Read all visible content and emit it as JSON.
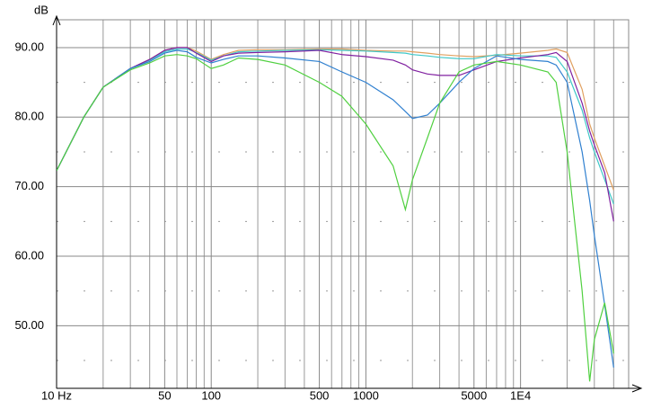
{
  "chart_data": {
    "type": "line",
    "ylabel": "dB",
    "xscale": "log",
    "x": [
      10,
      15,
      20,
      30,
      40,
      50,
      60,
      70,
      80,
      100,
      120,
      150,
      200,
      300,
      500,
      700,
      1000,
      1500,
      1800,
      2000,
      2500,
      3000,
      4000,
      5000,
      7000,
      10000,
      15000,
      17000,
      20000,
      25000,
      28000,
      30000,
      35000,
      40000
    ],
    "series": [
      {
        "color": "#e0a060",
        "values": [
          72.3,
          80,
          84.3,
          87,
          88.3,
          89.6,
          90,
          90,
          89.5,
          88.3,
          89,
          89.6,
          89.7,
          89.7,
          89.8,
          89.8,
          89.6,
          89.5,
          89.5,
          89.4,
          89.2,
          89,
          88.8,
          88.7,
          88.9,
          89.2,
          89.6,
          89.8,
          89.3,
          84,
          79,
          77,
          73,
          69.5
        ]
      },
      {
        "color": "#40c8c8",
        "values": [
          72.3,
          80,
          84.3,
          87,
          88.2,
          89.4,
          89.8,
          89.8,
          89.3,
          88.2,
          88.8,
          89.4,
          89.5,
          89.6,
          89.7,
          89.6,
          89.5,
          89.3,
          89.2,
          89,
          88.8,
          88.6,
          88.4,
          88.4,
          89,
          88.8,
          88.8,
          88.6,
          86.5,
          81,
          77,
          75,
          71,
          67.5
        ]
      },
      {
        "color": "#8020a0",
        "values": [
          72.3,
          80,
          84.3,
          87,
          88.3,
          89.6,
          90,
          90,
          89.2,
          88,
          88.8,
          89.2,
          89.3,
          89.4,
          89.6,
          89,
          88.7,
          88.2,
          87.5,
          86.8,
          86.2,
          86,
          86,
          86.8,
          88,
          88.5,
          89,
          89.3,
          88,
          82,
          78,
          76,
          72,
          65
        ]
      },
      {
        "color": "#3080d0",
        "values": [
          72.3,
          80,
          84.3,
          87,
          88,
          89.2,
          89.6,
          89.4,
          88.6,
          87.8,
          88.3,
          88.8,
          88.8,
          88.5,
          88,
          86.5,
          85,
          82.5,
          80.8,
          79.8,
          80.3,
          82,
          85,
          87,
          88.8,
          88.3,
          88,
          87.5,
          85,
          75,
          68,
          63,
          53,
          44
        ]
      },
      {
        "color": "#50d040",
        "values": [
          72.3,
          80,
          84.3,
          86.8,
          87.8,
          88.8,
          89,
          88.8,
          88.4,
          87,
          87.5,
          88.5,
          88.3,
          87.5,
          85,
          83,
          79,
          73,
          66.7,
          71,
          77,
          82,
          86.5,
          87.5,
          88,
          87.5,
          86.5,
          85,
          75,
          55,
          42,
          48,
          53.3,
          46
        ]
      }
    ],
    "xlim": [
      10,
      50000
    ],
    "xticks": [
      {
        "value": 10,
        "label": "10 Hz"
      },
      50,
      100,
      500,
      1000,
      5000,
      {
        "value": 10000,
        "label": "1E4"
      }
    ],
    "xminorticks": [
      20,
      30,
      40,
      60,
      70,
      80,
      90,
      200,
      300,
      400,
      600,
      700,
      800,
      900,
      2000,
      3000,
      4000,
      6000,
      7000,
      8000,
      9000,
      20000,
      30000,
      40000
    ],
    "ylim": [
      41,
      94
    ],
    "yticks": [
      {
        "value": 50,
        "label": "50.00"
      },
      {
        "value": 60,
        "label": "60.00"
      },
      {
        "value": 70,
        "label": "70.00"
      },
      {
        "value": 80,
        "label": "80.00"
      },
      {
        "value": 90,
        "label": "90.00"
      }
    ],
    "yminorticks": [
      45,
      55,
      65,
      75,
      85
    ],
    "grid": true
  }
}
